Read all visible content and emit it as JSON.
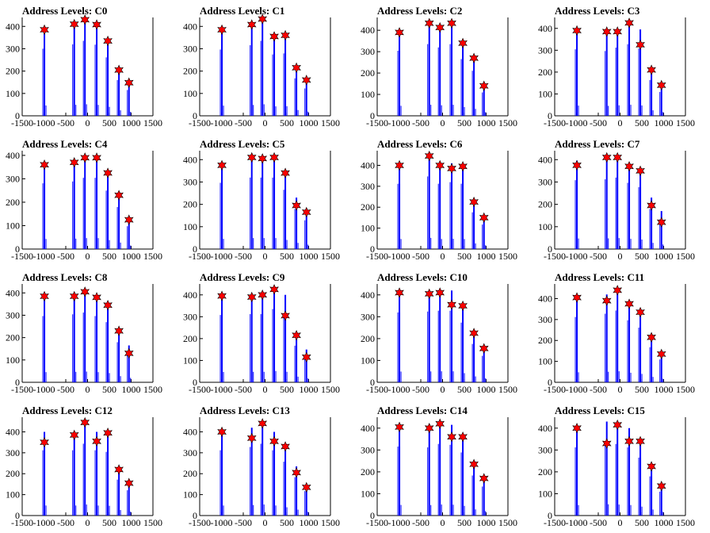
{
  "chart_data": [
    {
      "type": "bar",
      "title": "Address Levels: C0",
      "xlim": [
        -1500,
        1500
      ],
      "ylim": [
        0,
        440
      ],
      "xticks": [
        -1500,
        -1000,
        -500,
        0,
        500,
        1000,
        1500
      ],
      "xtick_labels": [
        "-1500",
        "-1000",
        "-500",
        "0",
        "500",
        "1000",
        "1500"
      ],
      "yticks": [
        0,
        100,
        200,
        300,
        400
      ],
      "ytick_labels": [
        "0",
        "100",
        "200",
        "300",
        "400"
      ],
      "peaks_x": [
        -990,
        -305,
        -60,
        210,
        465,
        720,
        950
      ],
      "peaks_y": [
        385,
        410,
        430,
        408,
        335,
        205,
        148
      ],
      "markers_y": [
        385,
        410,
        430,
        408,
        335,
        205,
        148
      ]
    },
    {
      "type": "bar",
      "title": "Address Levels: C1",
      "xlim": [
        -1500,
        1500
      ],
      "ylim": [
        0,
        440
      ],
      "xticks": [
        -1500,
        -1000,
        -500,
        0,
        500,
        1000,
        1500
      ],
      "xtick_labels": [
        "-1500",
        "-1000",
        "-500",
        "0",
        "500",
        "1000",
        "1500"
      ],
      "yticks": [
        0,
        100,
        200,
        300,
        400
      ],
      "ytick_labels": [
        "0",
        "100",
        "200",
        "300",
        "400"
      ],
      "peaks_x": [
        -990,
        -305,
        -60,
        210,
        465,
        720,
        950
      ],
      "peaks_y": [
        380,
        405,
        430,
        352,
        358,
        215,
        157
      ],
      "markers_y": [
        385,
        408,
        433,
        355,
        360,
        215,
        160
      ]
    },
    {
      "type": "bar",
      "title": "Address Levels: C2",
      "xlim": [
        -1500,
        1500
      ],
      "ylim": [
        0,
        460
      ],
      "xticks": [
        -1500,
        -1000,
        -500,
        0,
        500,
        1000,
        1500
      ],
      "xtick_labels": [
        "-1500",
        "-1000",
        "-500",
        "0",
        "500",
        "1000",
        "1500"
      ],
      "yticks": [
        0,
        100,
        200,
        300,
        400
      ],
      "ytick_labels": [
        "0",
        "100",
        "200",
        "300",
        "400"
      ],
      "peaks_x": [
        -990,
        -305,
        -60,
        210,
        465,
        720,
        950
      ],
      "peaks_y": [
        390,
        430,
        410,
        430,
        340,
        270,
        140
      ],
      "markers_y": [
        390,
        433,
        413,
        433,
        340,
        270,
        140
      ]
    },
    {
      "type": "bar",
      "title": "Address Levels: C3",
      "xlim": [
        -1500,
        1500
      ],
      "ylim": [
        0,
        450
      ],
      "xticks": [
        -1500,
        -1000,
        -500,
        0,
        500,
        1000,
        1500
      ],
      "xtick_labels": [
        "-1500",
        "-1000",
        "-500",
        "0",
        "500",
        "1000",
        "1500"
      ],
      "yticks": [
        0,
        100,
        200,
        300,
        400
      ],
      "ytick_labels": [
        "0",
        "100",
        "200",
        "300",
        "400"
      ],
      "peaks_x": [
        -990,
        -305,
        -60,
        210,
        465,
        720,
        950
      ],
      "peaks_y": [
        390,
        380,
        400,
        420,
        395,
        210,
        140
      ],
      "markers_y": [
        390,
        385,
        385,
        425,
        325,
        210,
        140
      ]
    },
    {
      "type": "bar",
      "title": "Address Levels: C4",
      "xlim": [
        -1500,
        1500
      ],
      "ylim": [
        0,
        420
      ],
      "xticks": [
        -1500,
        -1000,
        -500,
        0,
        500,
        1000,
        1500
      ],
      "xtick_labels": [
        "-1500",
        "-1000",
        "-500",
        "0",
        "500",
        "1000",
        "1500"
      ],
      "yticks": [
        0,
        100,
        200,
        300,
        400
      ],
      "ytick_labels": [
        "0",
        "100",
        "200",
        "300",
        "400"
      ],
      "peaks_x": [
        -990,
        -305,
        -60,
        210,
        465,
        720,
        950
      ],
      "peaks_y": [
        360,
        370,
        390,
        390,
        320,
        230,
        125
      ],
      "markers_y": [
        360,
        370,
        390,
        390,
        325,
        230,
        125
      ]
    },
    {
      "type": "bar",
      "title": "Address Levels: C5",
      "xlim": [
        -1500,
        1500
      ],
      "ylim": [
        0,
        440
      ],
      "xticks": [
        -1500,
        -1000,
        -500,
        0,
        500,
        1000,
        1500
      ],
      "xtick_labels": [
        "-1500",
        "-1000",
        "-500",
        "0",
        "500",
        "1000",
        "1500"
      ],
      "yticks": [
        0,
        100,
        200,
        300,
        400
      ],
      "ytick_labels": [
        "0",
        "100",
        "200",
        "300",
        "400"
      ],
      "peaks_x": [
        -990,
        -305,
        -60,
        210,
        465,
        720,
        950
      ],
      "peaks_y": [
        380,
        410,
        410,
        410,
        340,
        230,
        165
      ],
      "markers_y": [
        375,
        410,
        405,
        410,
        340,
        195,
        165
      ]
    },
    {
      "type": "bar",
      "title": "Address Levels: C6",
      "xlim": [
        -1500,
        1500
      ],
      "ylim": [
        0,
        470
      ],
      "xticks": [
        -1500,
        -1000,
        -500,
        0,
        500,
        1000,
        1500
      ],
      "xtick_labels": [
        "-1500",
        "-1000",
        "-500",
        "0",
        "500",
        "1000",
        "1500"
      ],
      "yticks": [
        0,
        100,
        200,
        300,
        400
      ],
      "ytick_labels": [
        "0",
        "100",
        "200",
        "300",
        "400"
      ],
      "peaks_x": [
        -990,
        -305,
        -60,
        210,
        465,
        720,
        950
      ],
      "peaks_y": [
        400,
        445,
        400,
        410,
        400,
        225,
        150
      ],
      "markers_y": [
        400,
        445,
        400,
        385,
        395,
        225,
        150
      ]
    },
    {
      "type": "bar",
      "title": "Address Levels: C7",
      "xlim": [
        -1500,
        1500
      ],
      "ylim": [
        0,
        440
      ],
      "xticks": [
        -1500,
        -1000,
        -500,
        0,
        500,
        1000,
        1500
      ],
      "xtick_labels": [
        "-1500",
        "-1000",
        "-500",
        "0",
        "500",
        "1000",
        "1500"
      ],
      "yticks": [
        0,
        100,
        200,
        300,
        400
      ],
      "ytick_labels": [
        "0",
        "100",
        "200",
        "300",
        "400"
      ],
      "peaks_x": [
        -990,
        -305,
        -60,
        210,
        465,
        720,
        950
      ],
      "peaks_y": [
        395,
        400,
        410,
        380,
        355,
        230,
        170
      ],
      "markers_y": [
        375,
        410,
        410,
        370,
        350,
        195,
        120
      ]
    },
    {
      "type": "bar",
      "title": "Address Levels: C8",
      "xlim": [
        -1500,
        1500
      ],
      "ylim": [
        0,
        440
      ],
      "xticks": [
        -1500,
        -1000,
        -500,
        0,
        500,
        1000,
        1500
      ],
      "xtick_labels": [
        "-1500",
        "-1000",
        "-500",
        "0",
        "500",
        "1000",
        "1500"
      ],
      "yticks": [
        0,
        100,
        200,
        300,
        400
      ],
      "ytick_labels": [
        "0",
        "100",
        "200",
        "300",
        "400"
      ],
      "peaks_x": [
        -990,
        -305,
        -60,
        210,
        465,
        720,
        950
      ],
      "peaks_y": [
        380,
        390,
        400,
        380,
        345,
        230,
        165
      ],
      "markers_y": [
        385,
        385,
        405,
        380,
        345,
        230,
        130
      ]
    },
    {
      "type": "bar",
      "title": "Address Levels: C9",
      "xlim": [
        -1500,
        1500
      ],
      "ylim": [
        0,
        450
      ],
      "xticks": [
        -1500,
        -1000,
        -500,
        0,
        500,
        1000,
        1500
      ],
      "xtick_labels": [
        "-1500",
        "-1000",
        "-500",
        "0",
        "500",
        "1000",
        "1500"
      ],
      "yticks": [
        0,
        100,
        200,
        300,
        400
      ],
      "ytick_labels": [
        "0",
        "100",
        "200",
        "300",
        "400"
      ],
      "peaks_x": [
        -990,
        -305,
        -60,
        210,
        465,
        720,
        950
      ],
      "peaks_y": [
        395,
        400,
        400,
        430,
        400,
        215,
        150
      ],
      "markers_y": [
        395,
        390,
        400,
        425,
        305,
        215,
        115
      ]
    },
    {
      "type": "bar",
      "title": "Address Levels: C10",
      "xlim": [
        -1500,
        1500
      ],
      "ylim": [
        0,
        450
      ],
      "xticks": [
        -1500,
        -1000,
        -500,
        0,
        500,
        1000,
        1500
      ],
      "xtick_labels": [
        "-1500",
        "-1000",
        "-500",
        "0",
        "500",
        "1000",
        "1500"
      ],
      "yticks": [
        0,
        100,
        200,
        300,
        400
      ],
      "ytick_labels": [
        "0",
        "100",
        "200",
        "300",
        "400"
      ],
      "peaks_x": [
        -990,
        -305,
        -60,
        210,
        465,
        720,
        950
      ],
      "peaks_y": [
        410,
        415,
        420,
        420,
        350,
        225,
        155
      ],
      "markers_y": [
        410,
        405,
        410,
        355,
        350,
        225,
        155
      ]
    },
    {
      "type": "bar",
      "title": "Address Levels: C11",
      "xlim": [
        -1500,
        1500
      ],
      "ylim": [
        0,
        470
      ],
      "xticks": [
        -1500,
        -1000,
        -500,
        0,
        500,
        1000,
        1500
      ],
      "xtick_labels": [
        "-1500",
        "-1000",
        "-500",
        "0",
        "500",
        "1000",
        "1500"
      ],
      "yticks": [
        0,
        100,
        200,
        300,
        400
      ],
      "ytick_labels": [
        "0",
        "100",
        "200",
        "300",
        "400"
      ],
      "peaks_x": [
        -990,
        -305,
        -60,
        210,
        465,
        720,
        950
      ],
      "peaks_y": [
        400,
        420,
        440,
        380,
        335,
        215,
        140
      ],
      "markers_y": [
        405,
        390,
        440,
        375,
        335,
        215,
        135
      ]
    },
    {
      "type": "bar",
      "title": "Address Levels: C12",
      "xlim": [
        -1500,
        1500
      ],
      "ylim": [
        0,
        470
      ],
      "xticks": [
        -1500,
        -1000,
        -500,
        0,
        500,
        1000,
        1500
      ],
      "xtick_labels": [
        "-1500",
        "-1000",
        "-500",
        "0",
        "500",
        "1000",
        "1500"
      ],
      "yticks": [
        0,
        100,
        200,
        300,
        400
      ],
      "ytick_labels": [
        "0",
        "100",
        "200",
        "300",
        "400"
      ],
      "peaks_x": [
        -990,
        -305,
        -60,
        210,
        465,
        720,
        950
      ],
      "peaks_y": [
        400,
        400,
        440,
        400,
        390,
        220,
        155
      ],
      "markers_y": [
        350,
        385,
        445,
        355,
        395,
        220,
        155
      ]
    },
    {
      "type": "bar",
      "title": "Address Levels: C13",
      "xlim": [
        -1500,
        1500
      ],
      "ylim": [
        0,
        470
      ],
      "xticks": [
        -1500,
        -1000,
        -500,
        0,
        500,
        1000,
        1500
      ],
      "xtick_labels": [
        "-1500",
        "-1000",
        "-500",
        "0",
        "500",
        "1000",
        "1500"
      ],
      "yticks": [
        0,
        100,
        200,
        300,
        400
      ],
      "ytick_labels": [
        "0",
        "100",
        "200",
        "300",
        "400"
      ],
      "peaks_x": [
        -990,
        -305,
        -60,
        210,
        465,
        720,
        950
      ],
      "peaks_y": [
        400,
        420,
        440,
        400,
        330,
        235,
        150
      ],
      "markers_y": [
        400,
        370,
        440,
        355,
        330,
        205,
        135
      ]
    },
    {
      "type": "bar",
      "title": "Address Levels: C14",
      "xlim": [
        -1500,
        1500
      ],
      "ylim": [
        0,
        450
      ],
      "xticks": [
        -1500,
        -1000,
        -500,
        0,
        500,
        1000,
        1500
      ],
      "xtick_labels": [
        "-1500",
        "-1000",
        "-500",
        "0",
        "500",
        "1000",
        "1500"
      ],
      "yticks": [
        0,
        100,
        200,
        300,
        400
      ],
      "ytick_labels": [
        "0",
        "100",
        "200",
        "300",
        "400"
      ],
      "peaks_x": [
        -990,
        -305,
        -60,
        210,
        465,
        720,
        950
      ],
      "peaks_y": [
        405,
        400,
        420,
        415,
        370,
        235,
        170
      ],
      "markers_y": [
        405,
        400,
        420,
        360,
        360,
        235,
        170
      ]
    },
    {
      "type": "bar",
      "title": "Address Levels: C15",
      "xlim": [
        -1500,
        1500
      ],
      "ylim": [
        0,
        450
      ],
      "xticks": [
        -1500,
        -1000,
        -500,
        0,
        500,
        1000,
        1500
      ],
      "xtick_labels": [
        "-1500",
        "-1000",
        "-500",
        "0",
        "500",
        "1000",
        "1500"
      ],
      "yticks": [
        0,
        100,
        200,
        300,
        400
      ],
      "ytick_labels": [
        "0",
        "100",
        "200",
        "300",
        "400"
      ],
      "peaks_x": [
        -990,
        -305,
        -60,
        210,
        465,
        720,
        950
      ],
      "peaks_y": [
        400,
        430,
        420,
        400,
        340,
        230,
        140
      ],
      "markers_y": [
        400,
        330,
        415,
        340,
        340,
        225,
        135
      ]
    }
  ],
  "colors": {
    "bars": "#0000ff",
    "markers": "#ff0000",
    "marker_outline": "#000000",
    "axes": "#000000"
  }
}
